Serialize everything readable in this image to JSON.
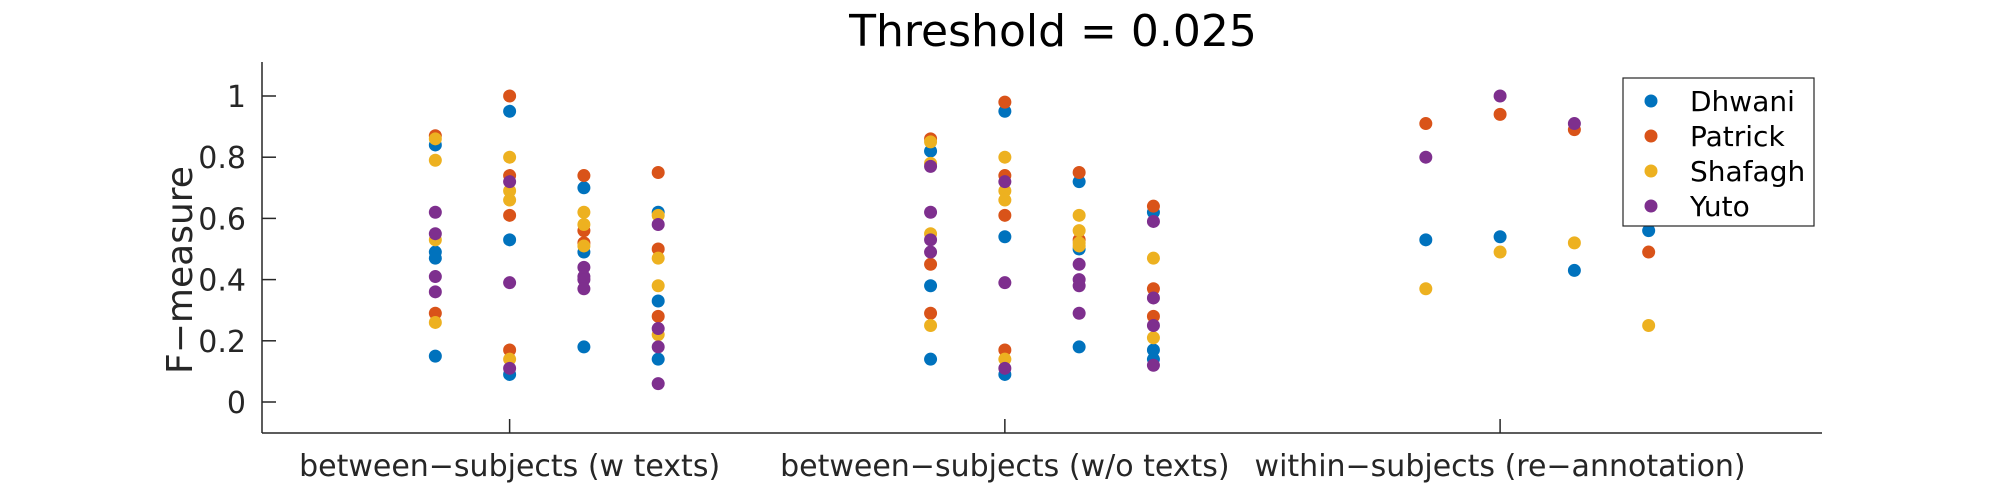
{
  "chart_data": {
    "type": "scatter",
    "title": "Threshold = 0.025",
    "xlabel": "",
    "ylabel": "F−measure",
    "ylim": [
      -0.1,
      1.1
    ],
    "yticks": [
      "0",
      "0.2",
      "0.4",
      "0.6",
      "0.8",
      "1"
    ],
    "yticks_values": [
      0,
      0.2,
      0.4,
      0.6,
      0.8,
      1.0
    ],
    "categories": [
      "between−subjects (w texts)",
      "between−subjects (w/o texts)",
      "within−subjects (re−annotation)"
    ],
    "grid": false,
    "legend_position": "top-right",
    "series": [
      {
        "name": "Dhwani",
        "color": "#0072BD",
        "points": [
          [
            0.85,
            0.84
          ],
          [
            0.85,
            0.49
          ],
          [
            0.85,
            0.47
          ],
          [
            0.85,
            0.15
          ],
          [
            1.0,
            0.95
          ],
          [
            1.0,
            0.53
          ],
          [
            1.0,
            0.09
          ],
          [
            1.15,
            0.7
          ],
          [
            1.15,
            0.49
          ],
          [
            1.15,
            0.18
          ],
          [
            1.3,
            0.62
          ],
          [
            1.3,
            0.33
          ],
          [
            1.3,
            0.14
          ],
          [
            1.85,
            0.82
          ],
          [
            1.85,
            0.38
          ],
          [
            1.85,
            0.14
          ],
          [
            2.0,
            0.95
          ],
          [
            2.0,
            0.54
          ],
          [
            2.0,
            0.09
          ],
          [
            2.15,
            0.72
          ],
          [
            2.15,
            0.5
          ],
          [
            2.15,
            0.18
          ],
          [
            2.3,
            0.62
          ],
          [
            2.3,
            0.17
          ],
          [
            2.3,
            0.14
          ],
          [
            2.85,
            0.53
          ],
          [
            3.0,
            0.54
          ],
          [
            3.15,
            0.43
          ],
          [
            3.3,
            0.56
          ]
        ]
      },
      {
        "name": "Patrick",
        "color": "#D95319",
        "points": [
          [
            0.85,
            0.87
          ],
          [
            0.85,
            0.29
          ],
          [
            1.0,
            1.0
          ],
          [
            1.0,
            0.74
          ],
          [
            1.0,
            0.61
          ],
          [
            1.0,
            0.17
          ],
          [
            1.15,
            0.74
          ],
          [
            1.15,
            0.56
          ],
          [
            1.15,
            0.52
          ],
          [
            1.3,
            0.75
          ],
          [
            1.3,
            0.5
          ],
          [
            1.3,
            0.28
          ],
          [
            1.85,
            0.86
          ],
          [
            1.85,
            0.45
          ],
          [
            1.85,
            0.29
          ],
          [
            2.0,
            0.98
          ],
          [
            2.0,
            0.74
          ],
          [
            2.0,
            0.61
          ],
          [
            2.0,
            0.17
          ],
          [
            2.15,
            0.75
          ],
          [
            2.15,
            0.53
          ],
          [
            2.3,
            0.64
          ],
          [
            2.3,
            0.37
          ],
          [
            2.3,
            0.28
          ],
          [
            2.85,
            0.91
          ],
          [
            3.0,
            0.94
          ],
          [
            3.15,
            0.89
          ],
          [
            3.3,
            0.49
          ]
        ]
      },
      {
        "name": "Shafagh",
        "color": "#EDB120",
        "points": [
          [
            0.85,
            0.86
          ],
          [
            0.85,
            0.79
          ],
          [
            0.85,
            0.53
          ],
          [
            0.85,
            0.26
          ],
          [
            1.0,
            0.8
          ],
          [
            1.0,
            0.69
          ],
          [
            1.0,
            0.66
          ],
          [
            1.0,
            0.14
          ],
          [
            1.15,
            0.62
          ],
          [
            1.15,
            0.58
          ],
          [
            1.15,
            0.51
          ],
          [
            1.3,
            0.61
          ],
          [
            1.3,
            0.47
          ],
          [
            1.3,
            0.38
          ],
          [
            1.3,
            0.22
          ],
          [
            1.85,
            0.85
          ],
          [
            1.85,
            0.78
          ],
          [
            1.85,
            0.55
          ],
          [
            1.85,
            0.25
          ],
          [
            2.0,
            0.8
          ],
          [
            2.0,
            0.69
          ],
          [
            2.0,
            0.66
          ],
          [
            2.0,
            0.14
          ],
          [
            2.15,
            0.61
          ],
          [
            2.15,
            0.56
          ],
          [
            2.15,
            0.52
          ],
          [
            2.15,
            0.51
          ],
          [
            2.3,
            0.47
          ],
          [
            2.3,
            0.21
          ],
          [
            2.85,
            0.37
          ],
          [
            3.0,
            0.49
          ],
          [
            3.15,
            0.52
          ],
          [
            3.3,
            0.25
          ]
        ]
      },
      {
        "name": "Yuto",
        "color": "#7E2F8E",
        "points": [
          [
            0.85,
            0.62
          ],
          [
            0.85,
            0.55
          ],
          [
            0.85,
            0.41
          ],
          [
            0.85,
            0.36
          ],
          [
            1.0,
            0.72
          ],
          [
            1.0,
            0.39
          ],
          [
            1.0,
            0.11
          ],
          [
            1.15,
            0.44
          ],
          [
            1.15,
            0.41
          ],
          [
            1.15,
            0.4
          ],
          [
            1.15,
            0.37
          ],
          [
            1.3,
            0.58
          ],
          [
            1.3,
            0.24
          ],
          [
            1.3,
            0.18
          ],
          [
            1.3,
            0.06
          ],
          [
            1.85,
            0.77
          ],
          [
            1.85,
            0.62
          ],
          [
            1.85,
            0.53
          ],
          [
            1.85,
            0.49
          ],
          [
            2.0,
            0.72
          ],
          [
            2.0,
            0.39
          ],
          [
            2.0,
            0.11
          ],
          [
            2.15,
            0.45
          ],
          [
            2.15,
            0.4
          ],
          [
            2.15,
            0.38
          ],
          [
            2.15,
            0.29
          ],
          [
            2.3,
            0.59
          ],
          [
            2.3,
            0.34
          ],
          [
            2.3,
            0.25
          ],
          [
            2.3,
            0.12
          ],
          [
            2.85,
            0.8
          ],
          [
            3.0,
            1.0
          ],
          [
            3.15,
            0.91
          ],
          [
            3.3,
            0.61
          ]
        ]
      }
    ]
  }
}
